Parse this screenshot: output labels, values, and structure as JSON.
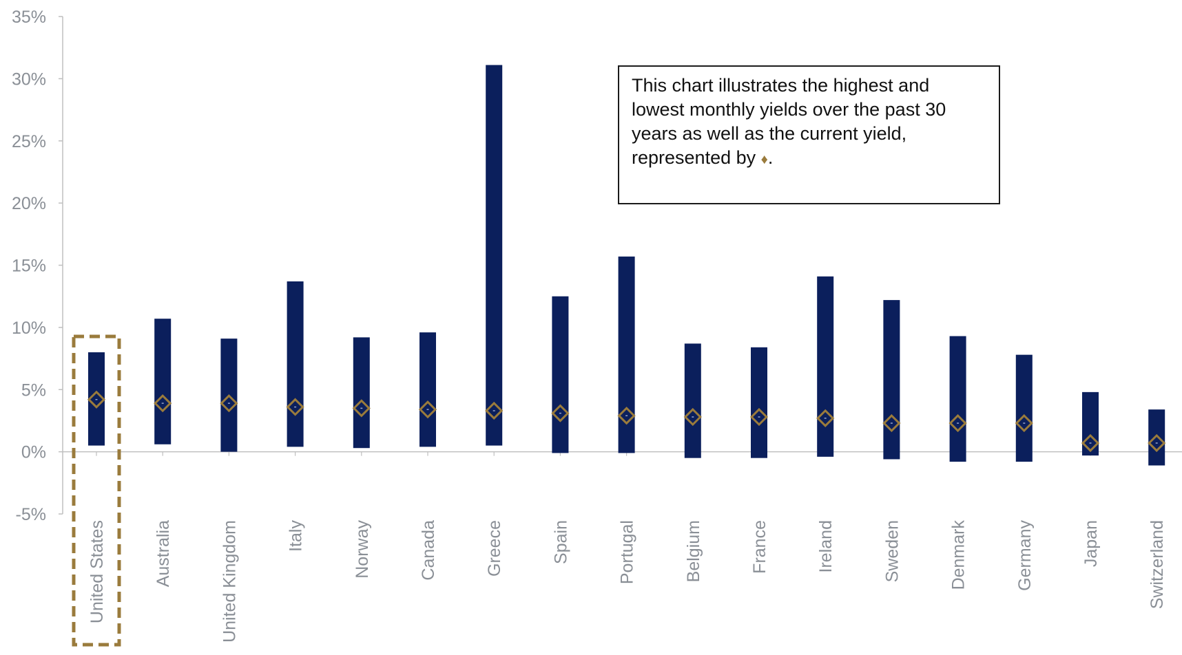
{
  "note": {
    "text": "This chart illustrates the highest and lowest monthly yields over the past 30 years as well as the current yield, represented by ",
    "symbol": "♦",
    "end": "."
  },
  "colors": {
    "bar": "#0b1f5c",
    "marker": "#9a7b3c",
    "highlight": "#9a7b3c",
    "axis": "#bfbfbf",
    "tick_text": "#8a8f96"
  },
  "chart_data": {
    "type": "floating-bar",
    "ylim": [
      -5,
      35
    ],
    "yticks": [
      -5,
      0,
      5,
      10,
      15,
      20,
      25,
      30,
      35
    ],
    "ytick_labels": [
      "-5%",
      "0%",
      "5%",
      "10%",
      "15%",
      "20%",
      "25%",
      "30%",
      "35%"
    ],
    "highlighted_category": "United States",
    "categories": [
      "United States",
      "Australia",
      "United Kingdom",
      "Italy",
      "Norway",
      "Canada",
      "Greece",
      "Spain",
      "Portugal",
      "Belgium",
      "France",
      "Ireland",
      "Sweden",
      "Denmark",
      "Germany",
      "Japan",
      "Switzerland"
    ],
    "series": [
      {
        "name": "High",
        "values": [
          8.0,
          10.7,
          9.1,
          13.7,
          9.2,
          9.6,
          31.1,
          12.5,
          15.7,
          8.7,
          8.4,
          14.1,
          12.2,
          9.3,
          7.8,
          4.8,
          3.4
        ]
      },
      {
        "name": "Low",
        "values": [
          0.5,
          0.6,
          0.0,
          0.4,
          0.3,
          0.4,
          0.5,
          -0.1,
          -0.1,
          -0.5,
          -0.5,
          -0.4,
          -0.6,
          -0.8,
          -0.8,
          -0.3,
          -1.1
        ]
      },
      {
        "name": "Current",
        "values": [
          4.2,
          3.9,
          3.9,
          3.6,
          3.5,
          3.4,
          3.3,
          3.1,
          2.9,
          2.8,
          2.8,
          2.7,
          2.3,
          2.3,
          2.3,
          0.7,
          0.7
        ]
      }
    ]
  }
}
